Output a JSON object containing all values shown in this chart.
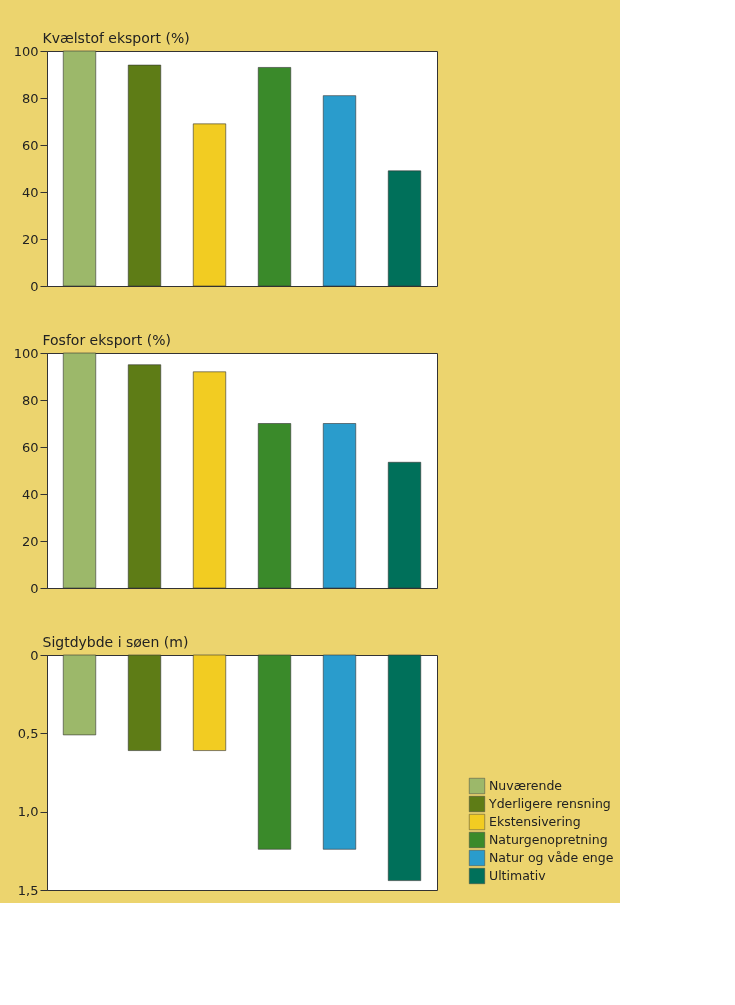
{
  "chart_data": [
    {
      "type": "bar",
      "ylabel": "Kvælstof eksport (%)",
      "categories": [
        null,
        null,
        null,
        null,
        null,
        null
      ],
      "ylim": [
        0,
        100
      ],
      "yticks": [
        0,
        20,
        40,
        60,
        80,
        100
      ],
      "tick_labels": "y",
      "legend": false,
      "values": [
        100,
        94,
        69,
        93,
        81,
        49
      ],
      "colors": [
        "#9cb86a",
        "#5e7c16",
        "#f2cc22",
        "#3a8a2a",
        "#2a9ccc",
        "#00705a"
      ]
    },
    {
      "type": "bar",
      "ylabel": "Fosfor eksport (%)",
      "categories": [
        null,
        null,
        null,
        null,
        null,
        null
      ],
      "ylim": [
        0,
        100
      ],
      "yticks": [
        0,
        20,
        40,
        60,
        80,
        100
      ],
      "tick_labels": "y",
      "legend": false,
      "values": [
        100,
        95,
        92,
        70,
        70,
        53.5
      ],
      "colors": [
        "#9cb86a",
        "#5e7c16",
        "#f2cc22",
        "#3a8a2a",
        "#2a9ccc",
        "#00705a"
      ]
    },
    {
      "type": "bar",
      "ylabel": "Sigtdybde i søen (m)",
      "ylim": [
        1.5,
        0
      ],
      "yticks": [
        {
          "value": 0,
          "label": "0"
        },
        {
          "value": 0.5,
          "label": "0,5"
        },
        {
          "value": 1.0,
          "label": "1,0"
        },
        {
          "value": 1.5,
          "label": "1,5"
        }
      ],
      "legend": "bottom right",
      "tick_labels": "y",
      "categories": [
        null,
        null,
        null,
        null,
        null,
        null
      ],
      "series": [
        {
          "name": "Nuværende",
          "color": "#9cb86a",
          "values": [
            0.51,
            null,
            null,
            null,
            null,
            null
          ]
        },
        {
          "name": "Yderligere rensning",
          "color": "#5e7c16",
          "values": [
            null,
            0.61,
            null,
            null,
            null,
            null
          ]
        },
        {
          "name": "Ekstensivering",
          "color": "#f2cc22",
          "values": [
            null,
            null,
            0.61,
            null,
            null,
            null
          ]
        },
        {
          "name": "Naturgenopretning",
          "color": "#3a8a2a",
          "values": [
            null,
            null,
            null,
            1.24,
            null,
            null
          ]
        },
        {
          "name": "Natur og våde enge",
          "color": "#2a9ccc",
          "values": [
            null,
            null,
            null,
            null,
            1.24,
            null
          ]
        },
        {
          "name": "Ultimativ",
          "color": "#00705a",
          "values": [
            null,
            null,
            null,
            null,
            null,
            1.44
          ]
        }
      ]
    }
  ]
}
